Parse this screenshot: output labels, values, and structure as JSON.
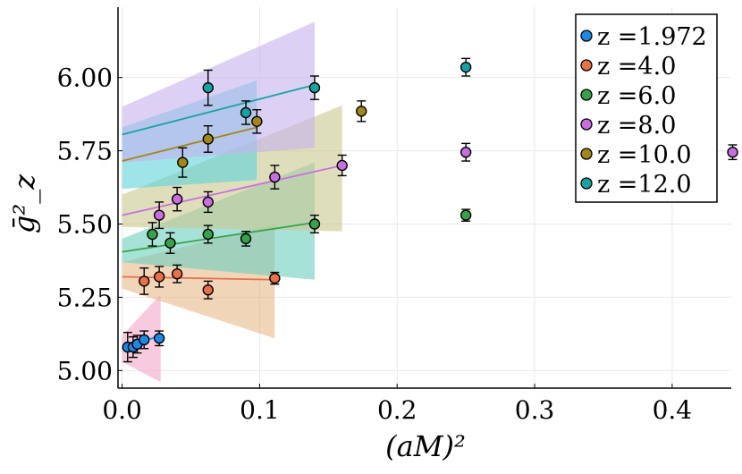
{
  "chart_data": {
    "type": "scatter",
    "xlabel": "(aM)²",
    "ylabel": "ḡ²_z",
    "xlim": [
      -0.003,
      0.443
    ],
    "ylim": [
      4.94,
      6.24
    ],
    "grid": true,
    "legend_position": "top-right",
    "x_ticks": [
      {
        "value": 0.0,
        "label": "0.0"
      },
      {
        "value": 0.1,
        "label": "0.1"
      },
      {
        "value": 0.2,
        "label": "0.2"
      },
      {
        "value": 0.3,
        "label": "0.3"
      },
      {
        "value": 0.4,
        "label": "0.4"
      }
    ],
    "y_ticks": [
      {
        "value": 5.0,
        "label": "5.00"
      },
      {
        "value": 5.25,
        "label": "5.25"
      },
      {
        "value": 5.5,
        "label": "5.50"
      },
      {
        "value": 5.75,
        "label": "5.75"
      },
      {
        "value": 6.0,
        "label": "6.00"
      }
    ],
    "series": [
      {
        "name": "z =1.972",
        "color": "#1e88e5",
        "band_color": "#f4a6c8",
        "points": [
          {
            "x": 0.004,
            "y": 5.08,
            "err": 0.05
          },
          {
            "x": 0.008,
            "y": 5.08,
            "err": 0.035
          },
          {
            "x": 0.011,
            "y": 5.09,
            "err": 0.03
          },
          {
            "x": 0.016,
            "y": 5.105,
            "err": 0.03
          },
          {
            "x": 0.027,
            "y": 5.11,
            "err": 0.025
          }
        ],
        "fit": {
          "x": [
            0.0,
            0.028
          ],
          "y": [
            5.075,
            5.12
          ]
        },
        "band": {
          "x": [
            0.0,
            0.028
          ],
          "lower": [
            5.03,
            4.96
          ],
          "upper": [
            5.12,
            5.26
          ]
        }
      },
      {
        "name": "z =4.0",
        "color": "#e8704a",
        "band_color": "#e8b98a",
        "points": [
          {
            "x": 0.016,
            "y": 5.305,
            "err": 0.045
          },
          {
            "x": 0.027,
            "y": 5.32,
            "err": 0.035
          },
          {
            "x": 0.04,
            "y": 5.33,
            "err": 0.03
          },
          {
            "x": 0.0625,
            "y": 5.275,
            "err": 0.03
          },
          {
            "x": 0.111,
            "y": 5.315,
            "err": 0.02
          }
        ],
        "fit": {
          "x": [
            0.0,
            0.111
          ],
          "y": [
            5.32,
            5.31
          ]
        },
        "band": {
          "x": [
            0.0,
            0.111
          ],
          "lower": [
            5.28,
            5.11
          ],
          "upper": [
            5.37,
            5.5
          ]
        }
      },
      {
        "name": "z =6.0",
        "color": "#3aa14a",
        "band_color": "#6ccfbf",
        "points": [
          {
            "x": 0.022,
            "y": 5.465,
            "err": 0.04
          },
          {
            "x": 0.035,
            "y": 5.435,
            "err": 0.035
          },
          {
            "x": 0.0625,
            "y": 5.465,
            "err": 0.03
          },
          {
            "x": 0.09,
            "y": 5.45,
            "err": 0.025
          },
          {
            "x": 0.14,
            "y": 5.5,
            "err": 0.03
          },
          {
            "x": 0.25,
            "y": 5.53,
            "err": 0.02
          }
        ],
        "fit": {
          "x": [
            0.0,
            0.14
          ],
          "y": [
            5.405,
            5.505
          ]
        },
        "band": {
          "x": [
            0.0,
            0.14
          ],
          "lower": [
            5.37,
            5.31
          ],
          "upper": [
            5.45,
            5.71
          ]
        }
      },
      {
        "name": "z =8.0",
        "color": "#c86ee0",
        "band_color": "#c9c88e",
        "points": [
          {
            "x": 0.027,
            "y": 5.53,
            "err": 0.045
          },
          {
            "x": 0.04,
            "y": 5.585,
            "err": 0.04
          },
          {
            "x": 0.0625,
            "y": 5.575,
            "err": 0.035
          },
          {
            "x": 0.111,
            "y": 5.66,
            "err": 0.04
          },
          {
            "x": 0.16,
            "y": 5.7,
            "err": 0.035
          },
          {
            "x": 0.25,
            "y": 5.745,
            "err": 0.03
          },
          {
            "x": 0.444,
            "y": 5.745,
            "err": 0.025
          }
        ],
        "fit": {
          "x": [
            0.0,
            0.16
          ],
          "y": [
            5.53,
            5.7
          ]
        },
        "band": {
          "x": [
            0.0,
            0.16
          ],
          "lower": [
            5.49,
            5.475
          ],
          "upper": [
            5.6,
            5.905
          ]
        }
      },
      {
        "name": "z =10.0",
        "color": "#a4871a",
        "band_color": "#5fd2d8",
        "points": [
          {
            "x": 0.044,
            "y": 5.71,
            "err": 0.05
          },
          {
            "x": 0.0625,
            "y": 5.79,
            "err": 0.045
          },
          {
            "x": 0.098,
            "y": 5.85,
            "err": 0.04
          },
          {
            "x": 0.174,
            "y": 5.885,
            "err": 0.035
          }
        ],
        "fit": {
          "x": [
            0.0,
            0.098
          ],
          "y": [
            5.715,
            5.83
          ]
        },
        "band": {
          "x": [
            0.0,
            0.098
          ],
          "lower": [
            5.62,
            5.65
          ],
          "upper": [
            5.83,
            5.99
          ]
        }
      },
      {
        "name": "z =12.0",
        "color": "#17a3a3",
        "band_color": "#c5b3ee",
        "points": [
          {
            "x": 0.0625,
            "y": 5.965,
            "err": 0.06
          },
          {
            "x": 0.09,
            "y": 5.88,
            "err": 0.04
          },
          {
            "x": 0.14,
            "y": 5.965,
            "err": 0.04
          },
          {
            "x": 0.25,
            "y": 6.035,
            "err": 0.03
          }
        ],
        "fit": {
          "x": [
            0.0,
            0.14
          ],
          "y": [
            5.805,
            5.975
          ]
        },
        "band": {
          "x": [
            0.0,
            0.14
          ],
          "lower": [
            5.71,
            5.76
          ],
          "upper": [
            5.9,
            6.19
          ]
        }
      }
    ]
  }
}
